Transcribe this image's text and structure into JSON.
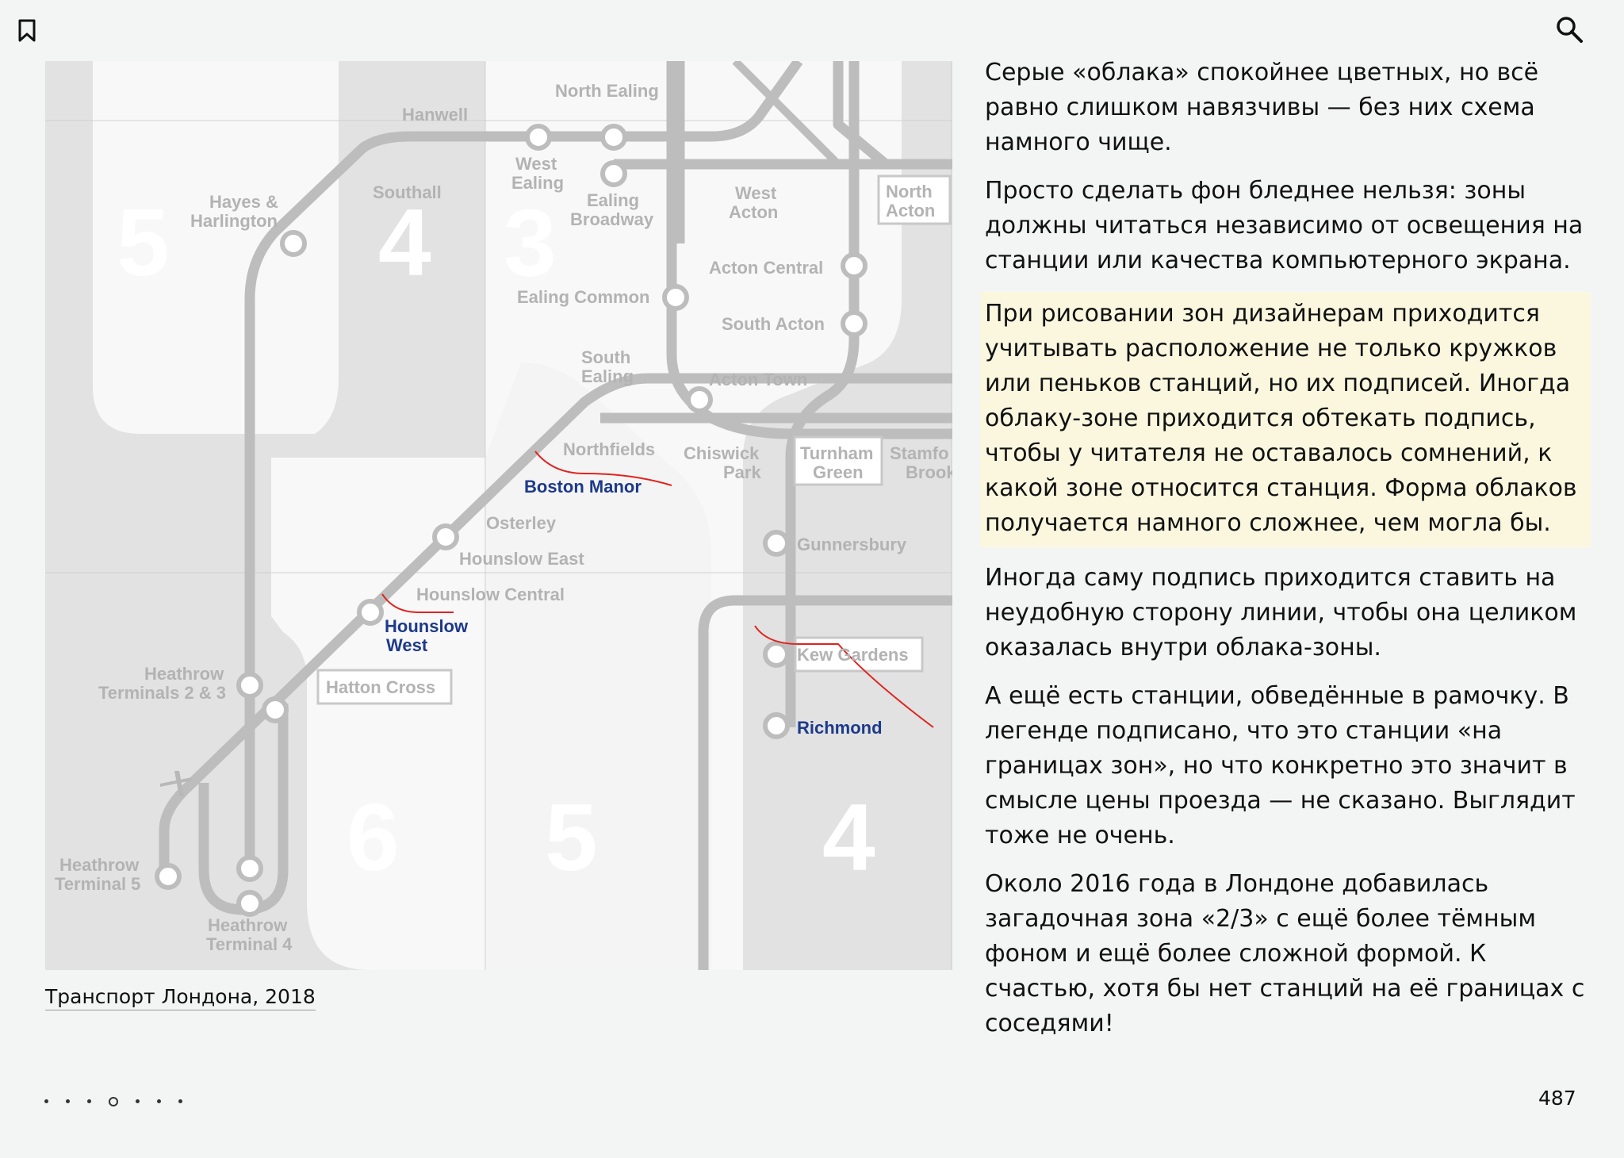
{
  "icons": {
    "bookmark": "bookmark-icon",
    "search": "search-icon"
  },
  "map": {
    "zones": [
      "5",
      "4",
      "3",
      "6",
      "5",
      "4"
    ],
    "stations": {
      "north_ealing": "North Ealing",
      "hanwell": "Hanwell",
      "west_ealing_1": "West",
      "west_ealing_2": "Ealing",
      "southall": "Southall",
      "hayes_1": "Hayes &",
      "hayes_2": "Harlington",
      "ealing_broadway_1": "Ealing",
      "ealing_broadway_2": "Broadway",
      "west_acton_1": "West",
      "west_acton_2": "Acton",
      "north_acton_1": "North",
      "north_acton_2": "Acton",
      "acton_central": "Acton Central",
      "ealing_common": "Ealing Common",
      "south_acton": "South Acton",
      "south_ealing_1": "South",
      "south_ealing_2": "Ealing",
      "acton_town": "Acton Town",
      "northfields": "Northfields",
      "chiswick_park_1": "Chiswick",
      "chiswick_park_2": "Park",
      "turnham_green_1": "Turnham",
      "turnham_green_2": "Green",
      "stamford_brook_1": "Stamfo",
      "stamford_brook_2": "Brook",
      "boston_manor": "Boston Manor",
      "osterley": "Osterley",
      "hounslow_east": "Hounslow East",
      "gunnersbury": "Gunnersbury",
      "hounslow_central": "Hounslow Central",
      "hounslow_west_1": "Hounslow",
      "hounslow_west_2": "West",
      "kew_gardens": "Kew Gardens",
      "heathrow_23_1": "Heathrow",
      "heathrow_23_2": "Terminals 2 & 3",
      "hatton_cross": "Hatton Cross",
      "richmond": "Richmond",
      "heathrow_5_1": "Heathrow",
      "heathrow_5_2": "Terminal 5",
      "heathrow_4_1": "Heathrow",
      "heathrow_4_2": "Terminal 4"
    },
    "caption": "Транспорт Лондона, 2018"
  },
  "article": {
    "paragraphs": [
      "Серые «облака» спокойнее цветных, но всё равно слишком навязчивы — без них схема намного чище.",
      "Просто сделать фон бледнее нельзя: зоны должны читаться независимо от освещения на станции или качества компьютерного экрана.",
      "При рисовании зон дизайнерам приходится учитывать расположение не только кружков или пеньков станций, но их подписей. Иногда облаку-зоне приходится обтекать подпись, чтобы у читателя не оставалось сомнений, к какой зоне относится станция. Форма облаков получается намного сложнее, чем могла бы.",
      "Иногда саму подпись приходится ставить на неудобную сторону линии, чтобы она целиком оказалась внутри облака-зоны.",
      "А ещё есть станции, обведённые в рамочку. В легенде подписано, что это станции «на границах зон», но что конкретно это значит в смысле цены проезда — не сказано. Выглядит тоже не очень.",
      "Около 2016 года в Лондоне добавилась загадочная зона «2/3» с ещё более тёмным фоном и ещё более сложной формой. К счастью, хотя бы нет станций на её границах с соседями!"
    ]
  },
  "pager": {
    "page_number": "487"
  }
}
